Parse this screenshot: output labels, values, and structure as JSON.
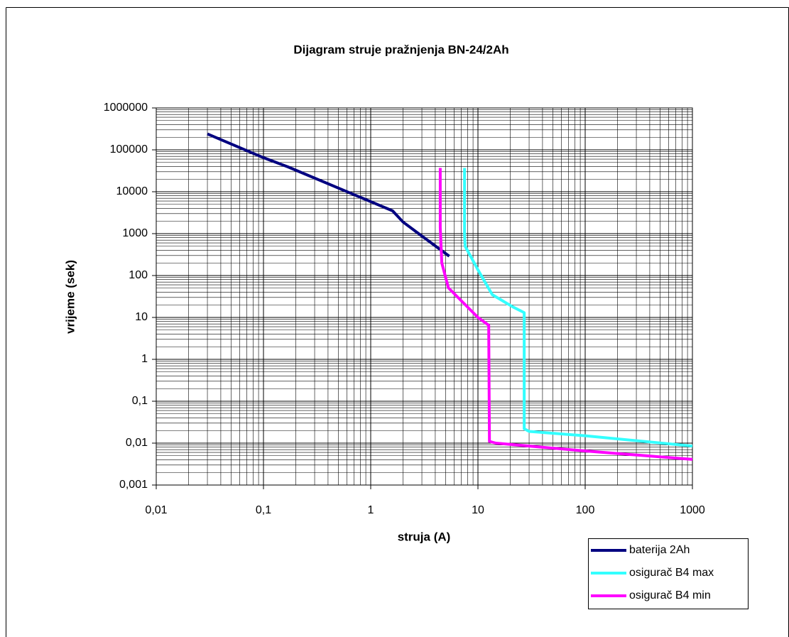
{
  "chart_data": {
    "type": "line",
    "title": "Dijagram struje pražnjenja BN-24/2Ah",
    "x_label": "struja (A)",
    "y_label": "vrijeme (sek)",
    "xlog": true,
    "ylog": true,
    "grid": true,
    "minor_grid": true,
    "legend": "lower right",
    "xlim": [
      0.01,
      1000
    ],
    "ylim": [
      0.001,
      1000000
    ],
    "xticks": [
      {
        "value": 0.01,
        "label": "0,01"
      },
      {
        "value": 0.1,
        "label": "0,1"
      },
      1,
      10,
      100,
      1000
    ],
    "yticks": [
      {
        "value": 0.001,
        "label": "0,001"
      },
      {
        "value": 0.01,
        "label": "0,01"
      },
      {
        "value": 0.1,
        "label": "0,1"
      },
      1,
      10,
      100,
      1000,
      10000,
      100000,
      1000000
    ],
    "series": [
      {
        "name": "baterija 2Ah",
        "color": "#000080",
        "x": [
          0.03,
          0.1,
          0.17,
          1,
          1.6,
          2.0,
          2.8,
          5.4
        ],
        "values": [
          240000,
          65000,
          39000,
          5800,
          3500,
          1900,
          1000,
          290
        ]
      },
      {
        "name": "osigurač B4 max",
        "color": "#33ffff",
        "x": [
          7.5,
          7.5,
          7.6,
          10,
          13.6,
          21,
          27,
          27,
          30,
          100,
          1000
        ],
        "values": [
          37000,
          1000,
          500,
          137,
          35,
          18,
          13,
          0.022,
          0.019,
          0.015,
          0.0085
        ]
      },
      {
        "name": "osigurač B4 min",
        "color": "#ff00ff",
        "x": [
          4.45,
          4.45,
          4.6,
          5.3,
          10,
          12.6,
          12.8,
          14.7,
          100,
          1000
        ],
        "values": [
          37000,
          1400,
          200,
          51,
          10,
          6.5,
          0.011,
          0.01,
          0.0065,
          0.0041
        ]
      }
    ]
  }
}
